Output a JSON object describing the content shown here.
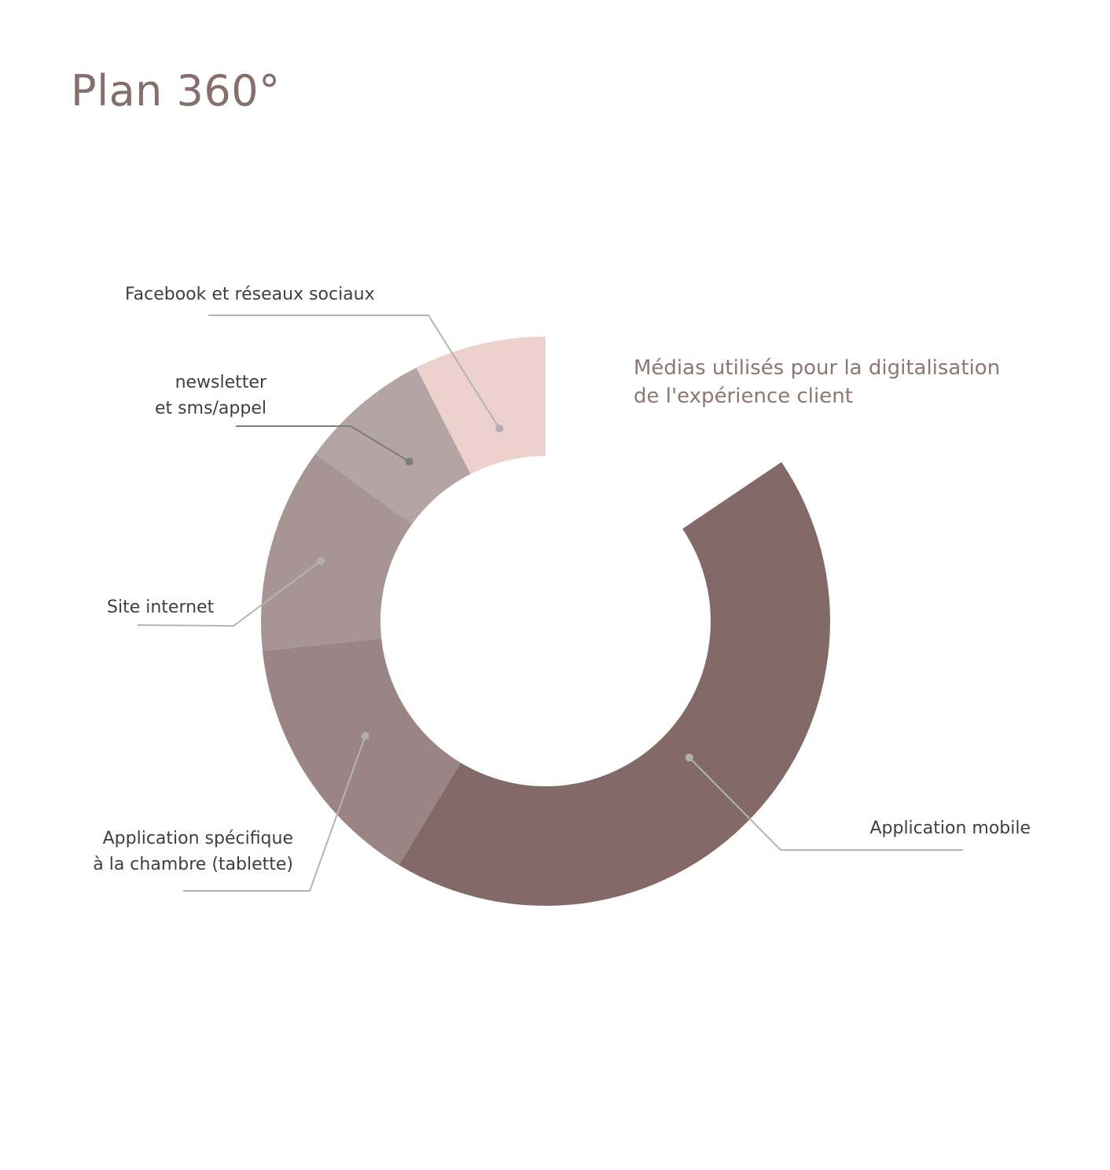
{
  "title": "Plan 360°",
  "subtitle_lines": [
    "Médias utilisés pour la digitalisation",
    "de l'expérience client"
  ],
  "colors": {
    "title": "#846f6d",
    "leader": "#b4b4b4",
    "leader_dark": "#7d7d7d",
    "dot": "#b0b0b0"
  },
  "chart_data": {
    "type": "pie",
    "variant": "donut",
    "total_degrees": 360,
    "title": "Médias utilisés pour la digitalisation de l'expérience client",
    "series": [
      {
        "label_lines": [
          "Application mobile"
        ],
        "value": 155,
        "color": "#836a69"
      },
      {
        "label_lines": [
          "Application spécifique",
          "à la chambre (tablette)"
        ],
        "value": 53,
        "color": "#9b8584"
      },
      {
        "label_lines": [
          "Site internet"
        ],
        "value": 42,
        "color": "#a79594"
      },
      {
        "label_lines": [
          "newsletter",
          "et sms/appel"
        ],
        "value": 27,
        "color": "#b5a4a4"
      },
      {
        "label_lines": [
          "Facebook et réseaux sociaux"
        ],
        "value": 27,
        "color": "#ecd1cc"
      }
    ],
    "empty": {
      "value": 56
    }
  }
}
